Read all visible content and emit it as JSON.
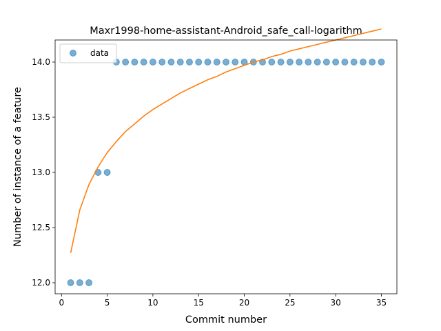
{
  "chart_data": {
    "type": "scatter",
    "title": "Maxr1998-home-assistant-Android_safe_call-logarithm",
    "xlabel": "Commit number",
    "ylabel": "Number of instance of a feature",
    "xlim": [
      -0.7,
      36.7
    ],
    "ylim": [
      11.9,
      14.2
    ],
    "xticks": [
      0,
      5,
      10,
      15,
      20,
      25,
      30,
      35
    ],
    "yticks": [
      12.0,
      12.5,
      13.0,
      13.5,
      14.0
    ],
    "grid": false,
    "legend": {
      "position": "top-left",
      "entries": [
        "data"
      ]
    },
    "series": [
      {
        "name": "data",
        "kind": "scatter",
        "color": "#1f77b4",
        "x": [
          1,
          2,
          3,
          4,
          5,
          6,
          7,
          8,
          9,
          10,
          11,
          12,
          13,
          14,
          15,
          16,
          17,
          18,
          19,
          20,
          21,
          22,
          23,
          24,
          25,
          26,
          27,
          28,
          29,
          30,
          31,
          32,
          33,
          34,
          35
        ],
        "y": [
          12,
          12,
          12,
          13,
          13,
          14,
          14,
          14,
          14,
          14,
          14,
          14,
          14,
          14,
          14,
          14,
          14,
          14,
          14,
          14,
          14,
          14,
          14,
          14,
          14,
          14,
          14,
          14,
          14,
          14,
          14,
          14,
          14,
          14,
          14
        ]
      },
      {
        "kind": "line",
        "color": "#ff7f0e",
        "x": [
          1,
          2,
          3,
          4,
          5,
          6,
          7,
          8,
          9,
          10,
          11,
          12,
          13,
          14,
          15,
          16,
          17,
          18,
          19,
          20,
          21,
          22,
          23,
          24,
          25,
          26,
          27,
          28,
          29,
          30,
          31,
          32,
          33,
          34,
          35
        ],
        "y": [
          12.27,
          12.66,
          12.89,
          13.05,
          13.18,
          13.28,
          13.37,
          13.44,
          13.51,
          13.57,
          13.62,
          13.67,
          13.72,
          13.76,
          13.8,
          13.84,
          13.87,
          13.91,
          13.94,
          13.97,
          14.0,
          14.02,
          14.05,
          14.07,
          14.1,
          14.12,
          14.14,
          14.16,
          14.18,
          14.2,
          14.22,
          14.24,
          14.26,
          14.28,
          14.3
        ]
      }
    ]
  }
}
